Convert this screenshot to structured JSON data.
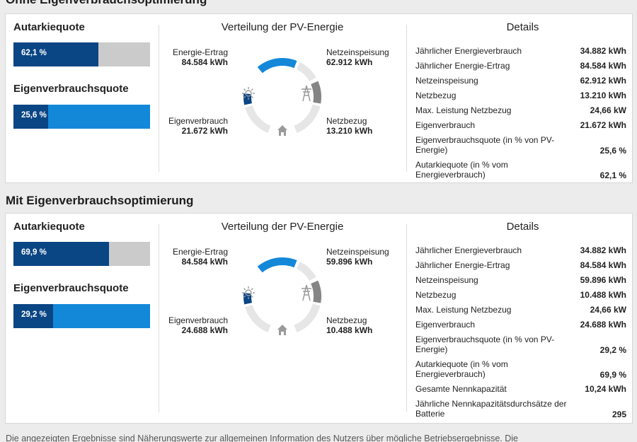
{
  "colors": {
    "dark_blue": "#0a4584",
    "bright_blue": "#1388d9",
    "rest_grey": "#cbcbcb",
    "ring_grey": "#e6e6e6",
    "ring_dark_grey": "#858585",
    "icon_grey": "#9a9a9a"
  },
  "sections": [
    {
      "title": "Ohne Eigenverbrauchsoptimierung",
      "autarkie": {
        "label": "Autarkiequote",
        "text": "62,1 %",
        "fraction": 0.621
      },
      "eigenverbrauch": {
        "label": "Eigenverbrauchsquote",
        "text": "25,6 %",
        "fraction": 0.256
      },
      "distribution": {
        "title": "Verteilung der PV-Energie",
        "ertrag_label": "Energie-Ertrag",
        "ertrag_value": "84.584 kWh",
        "einspeisung_label": "Netzeinspeisung",
        "einspeisung_value": "62.912 kWh",
        "eigen_label": "Eigenverbrauch",
        "eigen_value": "21.672 kWh",
        "bezug_label": "Netzbezug",
        "bezug_value": "13.210 kWh",
        "icons": [
          "sun-icon",
          "power-pylon-icon",
          "house-icon"
        ]
      },
      "details": {
        "title": "Details",
        "rows": [
          {
            "label": "Jährlicher Energieverbrauch",
            "value": "34.882 kWh"
          },
          {
            "label": "Jährlicher Energie-Ertrag",
            "value": "84.584 kWh"
          },
          {
            "label": "Netzeinspeisung",
            "value": "62.912 kWh"
          },
          {
            "label": "Netzbezug",
            "value": "13.210 kWh"
          },
          {
            "label": "Max. Leistung Netzbezug",
            "value": "24,66 kW"
          },
          {
            "label": "Eigenverbrauch",
            "value": "21.672 kWh"
          },
          {
            "label": "Eigenverbrauchsquote (in % von PV-Energie)",
            "value": "25,6 %"
          },
          {
            "label": "Autarkiequote (in % vom Energieverbrauch)",
            "value": "62,1 %"
          }
        ]
      }
    },
    {
      "title": "Mit Eigenverbrauchsoptimierung",
      "autarkie": {
        "label": "Autarkiequote",
        "text": "69,9 %",
        "fraction": 0.699
      },
      "eigenverbrauch": {
        "label": "Eigenverbrauchsquote",
        "text": "29,2 %",
        "fraction": 0.292
      },
      "distribution": {
        "title": "Verteilung der PV-Energie",
        "ertrag_label": "Energie-Ertrag",
        "ertrag_value": "84.584 kWh",
        "einspeisung_label": "Netzeinspeisung",
        "einspeisung_value": "59.896 kWh",
        "eigen_label": "Eigenverbrauch",
        "eigen_value": "24.688 kWh",
        "bezug_label": "Netzbezug",
        "bezug_value": "10.488 kWh",
        "icons": [
          "sun-icon",
          "power-pylon-icon",
          "house-icon"
        ]
      },
      "details": {
        "title": "Details",
        "rows": [
          {
            "label": "Jährlicher Energieverbrauch",
            "value": "34.882 kWh"
          },
          {
            "label": "Jährlicher Energie-Ertrag",
            "value": "84.584 kWh"
          },
          {
            "label": "Netzeinspeisung",
            "value": "59.896 kWh"
          },
          {
            "label": "Netzbezug",
            "value": "10.488 kWh"
          },
          {
            "label": "Max. Leistung Netzbezug",
            "value": "24,66 kW"
          },
          {
            "label": "Eigenverbrauch",
            "value": "24.688 kWh"
          },
          {
            "label": "Eigenverbrauchsquote (in % von PV-Energie)",
            "value": "29,2 %"
          },
          {
            "label": "Autarkiequote (in % vom Energieverbrauch)",
            "value": "69,9 %"
          },
          {
            "label": "Gesamte Nennkapazität",
            "value": "10,24 kWh"
          },
          {
            "label": "Jährliche Nennkapazitätsdurchsätze der Batterie",
            "value": "295"
          }
        ]
      }
    }
  ],
  "footer": "Die angezeigten Ergebnisse sind Näherungswerte zur allgemeinen Information des Nutzers über mögliche Betriebsergebnisse. Die"
}
